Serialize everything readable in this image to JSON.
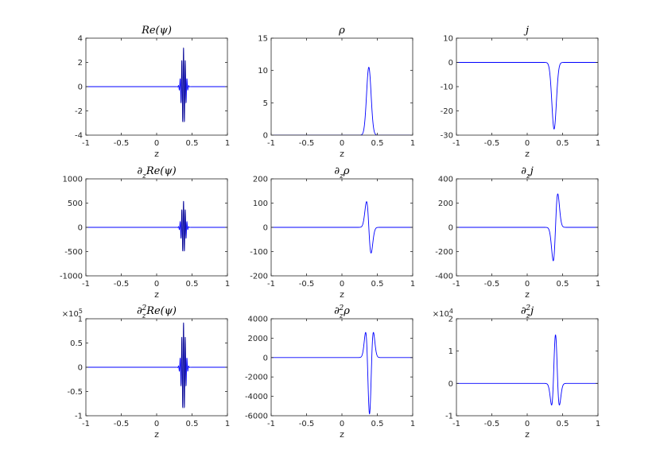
{
  "chart_data": [
    {
      "type": "line",
      "title": "Re(ψ)",
      "xlabel": "z",
      "xlim": [
        -1,
        1
      ],
      "ylim": [
        -4,
        4
      ],
      "xticks": [
        "-1",
        "-0.5",
        "0",
        "0.5",
        "1"
      ],
      "yticks": [
        "4",
        "2",
        "0",
        "-2",
        "-4"
      ],
      "exponent": "",
      "colors": [
        "#0000ff",
        "#000000"
      ],
      "series": [
        {
          "kind": "oscillating_packet",
          "center": 0.38,
          "width": 0.045,
          "amplitude": 3.2,
          "wavenumber": 260
        }
      ]
    },
    {
      "type": "line",
      "title": "ρ",
      "xlabel": "z",
      "xlim": [
        -1,
        1
      ],
      "ylim": [
        0,
        15
      ],
      "xticks": [
        "-1",
        "-0.5",
        "0",
        "0.5",
        "1"
      ],
      "yticks": [
        "15",
        "10",
        "5",
        "0"
      ],
      "exponent": "",
      "colors": [
        "#0000ff"
      ],
      "series": [
        {
          "kind": "gaussian",
          "center": 0.38,
          "width": 0.045,
          "amplitude": 10.5
        }
      ]
    },
    {
      "type": "line",
      "title": "j",
      "xlabel": "z",
      "xlim": [
        -1,
        1
      ],
      "ylim": [
        -30,
        10
      ],
      "xticks": [
        "-1",
        "-0.5",
        "0",
        "0.5",
        "1"
      ],
      "yticks": [
        "10",
        "0",
        "-10",
        "-20",
        "-30"
      ],
      "exponent": "",
      "colors": [
        "#0000ff"
      ],
      "series": [
        {
          "kind": "gaussian",
          "center": 0.38,
          "width": 0.045,
          "amplitude": -27.5
        }
      ]
    },
    {
      "type": "line",
      "title": "∂zRe(ψ)",
      "xlabel": "z",
      "xlim": [
        -1,
        1
      ],
      "ylim": [
        -1000,
        1000
      ],
      "xticks": [
        "-1",
        "-0.5",
        "0",
        "0.5",
        "1"
      ],
      "yticks": [
        "1000",
        "500",
        "0",
        "-500",
        "-1000"
      ],
      "exponent": "",
      "colors": [
        "#0000ff",
        "#000000"
      ],
      "series": [
        {
          "kind": "oscillating_packet",
          "center": 0.38,
          "width": 0.045,
          "amplitude": 540,
          "wavenumber": 260
        }
      ]
    },
    {
      "type": "line",
      "title": "∂zρ",
      "xlabel": "z",
      "xlim": [
        -1,
        1
      ],
      "ylim": [
        -200,
        200
      ],
      "xticks": [
        "-1",
        "-0.5",
        "0",
        "0.5",
        "1"
      ],
      "yticks": [
        "200",
        "100",
        "0",
        "-100",
        "-200"
      ],
      "exponent": "",
      "colors": [
        "#0000ff"
      ],
      "series": [
        {
          "kind": "gaussian_d1",
          "center": 0.38,
          "width": 0.045,
          "amplitude": 150
        }
      ]
    },
    {
      "type": "line",
      "title": "∂zj",
      "xlabel": "z",
      "xlim": [
        -1,
        1
      ],
      "ylim": [
        -400,
        400
      ],
      "xticks": [
        "-1",
        "-0.5",
        "0",
        "0.5",
        "1"
      ],
      "yticks": [
        "400",
        "200",
        "0",
        "-200",
        "-400"
      ],
      "exponent": "",
      "colors": [
        "#0000ff"
      ],
      "series": [
        {
          "kind": "gaussian_d1",
          "center": 0.4,
          "width": 0.045,
          "amplitude": -390
        }
      ]
    },
    {
      "type": "line",
      "title": "∂z²Re(ψ)",
      "xlabel": "z",
      "xlim": [
        -1,
        1
      ],
      "ylim": [
        -1,
        1
      ],
      "xticks": [
        "-1",
        "-0.5",
        "0",
        "0.5",
        "1"
      ],
      "yticks": [
        "1",
        "0.5",
        "0",
        "-0.5",
        "-1"
      ],
      "exponent": "5",
      "colors": [
        "#0000ff",
        "#000000"
      ],
      "series": [
        {
          "kind": "oscillating_packet",
          "center": 0.38,
          "width": 0.045,
          "amplitude": 0.92,
          "wavenumber": 260
        }
      ]
    },
    {
      "type": "line",
      "title": "∂z²ρ",
      "xlabel": "z",
      "xlim": [
        -1,
        1
      ],
      "ylim": [
        -6000,
        4000
      ],
      "xticks": [
        "-1",
        "-0.5",
        "0",
        "0.5",
        "1"
      ],
      "yticks": [
        "4000",
        "2000",
        "0",
        "-2000",
        "-4000",
        "-6000"
      ],
      "exponent": "",
      "colors": [
        "#0000ff"
      ],
      "series": [
        {
          "kind": "gaussian_d2",
          "center": 0.39,
          "width": 0.045,
          "amplitude": -5800
        }
      ]
    },
    {
      "type": "line",
      "title": "∂z²j",
      "xlabel": "z",
      "xlim": [
        -1,
        1
      ],
      "ylim": [
        -1,
        2
      ],
      "xticks": [
        "-1",
        "-0.5",
        "0",
        "0.5",
        "1"
      ],
      "yticks": [
        "2",
        "1",
        "0",
        "-1"
      ],
      "exponent": "4",
      "colors": [
        "#0000ff"
      ],
      "series": [
        {
          "kind": "gaussian_d2",
          "center": 0.4,
          "width": 0.045,
          "amplitude": 1.5
        }
      ]
    }
  ]
}
